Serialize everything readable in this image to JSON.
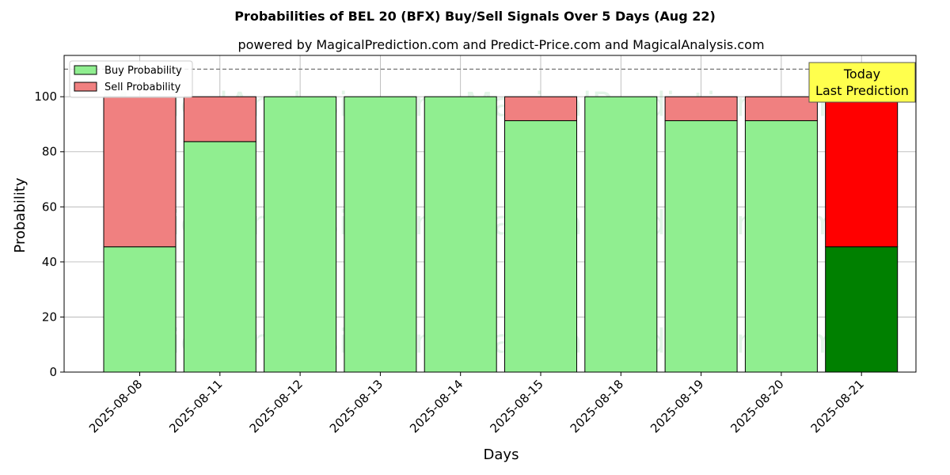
{
  "chart_data": {
    "type": "bar",
    "stacked": true,
    "title": "Probabilities of BEL 20 (BFX) Buy/Sell Signals Over 5 Days (Aug 22)",
    "subtitle": "powered by MagicalPrediction.com and Predict-Price.com and MagicalAnalysis.com",
    "xlabel": "Days",
    "ylabel": "Probability",
    "ylim": [
      0,
      115
    ],
    "yticks": [
      "0",
      "20",
      "40",
      "60",
      "80",
      "100"
    ],
    "ytick_values": [
      0,
      20,
      40,
      60,
      80,
      100
    ],
    "categories": [
      "2025-08-08",
      "2025-08-11",
      "2025-08-12",
      "2025-08-13",
      "2025-08-14",
      "2025-08-15",
      "2025-08-18",
      "2025-08-19",
      "2025-08-20",
      "2025-08-21"
    ],
    "series": [
      {
        "name": "Buy Probability",
        "values": [
          45.5,
          83.7,
          100,
          100,
          100,
          91.3,
          100,
          91.3,
          91.3,
          45.5
        ]
      },
      {
        "name": "Sell Probability",
        "values": [
          54.5,
          16.3,
          0,
          0,
          0,
          8.7,
          0,
          8.7,
          8.7,
          54.5
        ]
      }
    ],
    "reference_line": 110,
    "grid": true,
    "legend_position": "top-left",
    "highlight_last": true,
    "annotation": {
      "line1": "Today",
      "line2": "Last Prediction"
    },
    "colors": {
      "buy": "#90ee90",
      "sell": "#f08080",
      "buy_today": "#008000",
      "sell_today": "#ff0000",
      "annotation_bg": "#ffff4d"
    },
    "watermarks": [
      "MagicalAnalysis.com",
      "MagicalPrediction.com"
    ]
  }
}
